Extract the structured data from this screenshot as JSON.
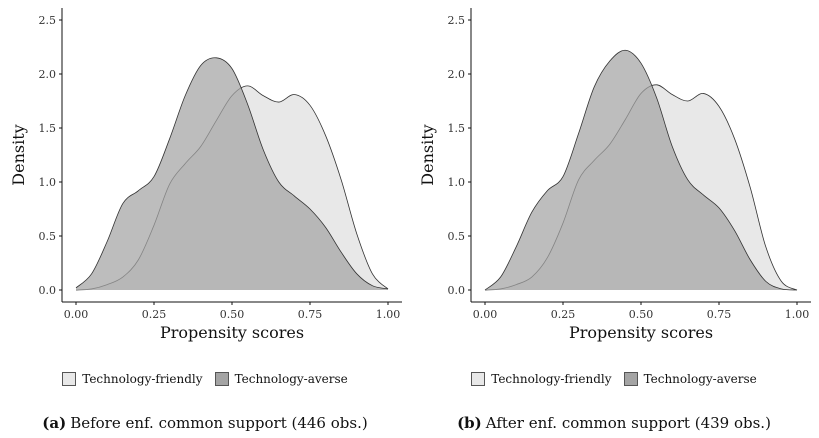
{
  "chart_data": [
    {
      "type": "area",
      "panel_label": "(a)",
      "caption": "Before enf. common support (446 obs.)",
      "xlabel": "Propensity scores",
      "ylabel": "Density",
      "xlim": [
        0,
        1
      ],
      "ylim": [
        0,
        2.5
      ],
      "xticks": [
        "0.00",
        "0.25",
        "0.50",
        "0.75",
        "1.00"
      ],
      "yticks": [
        "0.0",
        "0.5",
        "1.0",
        "1.5",
        "2.0",
        "2.5"
      ],
      "legend_position": "bottom",
      "series": [
        {
          "name": "Technology-friendly",
          "color": "#e8e8e8",
          "x": [
            0.0,
            0.05,
            0.1,
            0.15,
            0.2,
            0.25,
            0.3,
            0.35,
            0.4,
            0.45,
            0.5,
            0.55,
            0.6,
            0.65,
            0.7,
            0.75,
            0.8,
            0.85,
            0.9,
            0.95,
            1.0
          ],
          "y": [
            0.0,
            0.01,
            0.05,
            0.12,
            0.28,
            0.6,
            0.98,
            1.17,
            1.33,
            1.57,
            1.8,
            1.89,
            1.8,
            1.74,
            1.81,
            1.71,
            1.43,
            1.02,
            0.52,
            0.15,
            0.01
          ]
        },
        {
          "name": "Technology-averse",
          "color": "#a4a4a4",
          "x": [
            0.0,
            0.05,
            0.1,
            0.15,
            0.2,
            0.25,
            0.3,
            0.35,
            0.4,
            0.45,
            0.5,
            0.55,
            0.6,
            0.65,
            0.7,
            0.75,
            0.8,
            0.85,
            0.9,
            0.95,
            1.0
          ],
          "y": [
            0.02,
            0.15,
            0.45,
            0.8,
            0.92,
            1.05,
            1.4,
            1.8,
            2.08,
            2.15,
            2.05,
            1.72,
            1.3,
            1.0,
            0.87,
            0.75,
            0.58,
            0.35,
            0.15,
            0.04,
            0.01
          ]
        }
      ]
    },
    {
      "type": "area",
      "panel_label": "(b)",
      "caption": "After enf. common support (439 obs.)",
      "xlabel": "Propensity scores",
      "ylabel": "Density",
      "xlim": [
        0,
        1
      ],
      "ylim": [
        0,
        2.5
      ],
      "xticks": [
        "0.00",
        "0.25",
        "0.50",
        "0.75",
        "1.00"
      ],
      "yticks": [
        "0.0",
        "0.5",
        "1.0",
        "1.5",
        "2.0",
        "2.5"
      ],
      "legend_position": "bottom",
      "series": [
        {
          "name": "Technology-friendly",
          "color": "#e8e8e8",
          "x": [
            0.0,
            0.05,
            0.1,
            0.15,
            0.2,
            0.25,
            0.3,
            0.35,
            0.4,
            0.45,
            0.5,
            0.55,
            0.6,
            0.65,
            0.7,
            0.75,
            0.8,
            0.85,
            0.9,
            0.95,
            1.0
          ],
          "y": [
            0.0,
            0.01,
            0.05,
            0.12,
            0.3,
            0.62,
            1.02,
            1.2,
            1.35,
            1.58,
            1.82,
            1.9,
            1.81,
            1.75,
            1.82,
            1.7,
            1.4,
            0.95,
            0.4,
            0.08,
            0.0
          ]
        },
        {
          "name": "Technology-averse",
          "color": "#a4a4a4",
          "x": [
            0.0,
            0.05,
            0.1,
            0.15,
            0.2,
            0.25,
            0.3,
            0.35,
            0.4,
            0.45,
            0.5,
            0.55,
            0.6,
            0.65,
            0.7,
            0.75,
            0.8,
            0.85,
            0.9,
            0.95,
            1.0
          ],
          "y": [
            0.0,
            0.12,
            0.4,
            0.72,
            0.92,
            1.05,
            1.45,
            1.88,
            2.12,
            2.22,
            2.1,
            1.78,
            1.33,
            1.02,
            0.88,
            0.76,
            0.55,
            0.28,
            0.08,
            0.01,
            0.0
          ]
        }
      ]
    }
  ]
}
